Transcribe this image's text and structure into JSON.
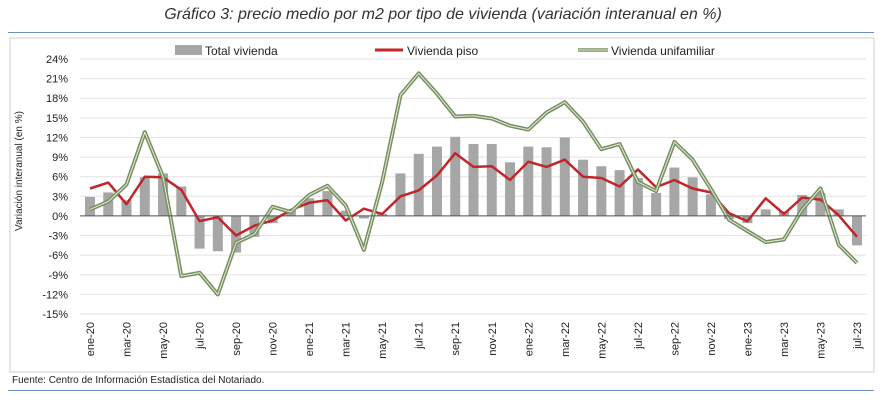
{
  "chart_data": {
    "type": "bar+line",
    "title": "Gráfico 3: precio medio por m2 por tipo de vivienda (variación interanual en %)",
    "ylabel": "Variación interanual (en %)",
    "ylim": [
      -15,
      24
    ],
    "yticks": [
      -15,
      -12,
      -9,
      -6,
      -3,
      0,
      3,
      6,
      9,
      12,
      15,
      18,
      21,
      24
    ],
    "ytick_labels": [
      "-15%",
      "-12%",
      "-9%",
      "-6%",
      "-3%",
      "0%",
      "3%",
      "6%",
      "9%",
      "12%",
      "15%",
      "18%",
      "21%",
      "24%"
    ],
    "grid": true,
    "legend_position": "top",
    "months": [
      "ene-20",
      "feb-20",
      "mar-20",
      "abr-20",
      "may-20",
      "jun-20",
      "jul-20",
      "ago-20",
      "sep-20",
      "oct-20",
      "nov-20",
      "dic-20",
      "ene-21",
      "feb-21",
      "mar-21",
      "abr-21",
      "may-21",
      "jun-21",
      "jul-21",
      "ago-21",
      "sep-21",
      "oct-21",
      "nov-21",
      "dic-21",
      "ene-22",
      "feb-22",
      "mar-22",
      "abr-22",
      "may-22",
      "jun-22",
      "jul-22",
      "ago-22",
      "sep-22",
      "oct-22",
      "nov-22",
      "dic-22",
      "ene-23",
      "feb-23",
      "mar-23",
      "abr-23",
      "may-23",
      "jun-23",
      "jul-23"
    ],
    "xtick_labels": [
      "ene-20",
      "mar-20",
      "may-20",
      "jul-20",
      "sep-20",
      "nov-20",
      "ene-21",
      "mar-21",
      "may-21",
      "jul-21",
      "sep-21",
      "nov-21",
      "ene-22",
      "mar-22",
      "may-22",
      "jul-22",
      "sep-22",
      "nov-22",
      "ene-23",
      "mar-23",
      "may-23",
      "jul-23"
    ],
    "series": [
      {
        "name": "Total vivienda",
        "kind": "bar",
        "color": "#a6a6a6",
        "values": [
          2.9,
          3.6,
          2.4,
          5.9,
          6.5,
          4.5,
          -5.0,
          -5.4,
          -5.6,
          -3.2,
          -1.1,
          0.8,
          2.7,
          3.8,
          0.8,
          -0.4,
          0.3,
          6.5,
          9.5,
          10.6,
          12.1,
          11.0,
          11.0,
          8.2,
          10.6,
          10.5,
          12.0,
          8.6,
          7.6,
          7.0,
          5.8,
          3.5,
          7.4,
          5.9,
          3.3,
          -0.5,
          -1.1,
          1.0,
          0.7,
          3.2,
          3.5,
          1.0,
          -4.5
        ]
      },
      {
        "name": "Vivienda piso",
        "kind": "line",
        "color": "#c0262a",
        "values": [
          4.2,
          5.1,
          1.8,
          6.0,
          5.9,
          4.0,
          -0.8,
          -0.2,
          -3.0,
          -1.5,
          -0.7,
          0.9,
          2.0,
          2.4,
          -0.7,
          1.1,
          0.3,
          3.0,
          3.9,
          6.2,
          9.6,
          7.5,
          7.6,
          5.5,
          8.3,
          7.5,
          8.6,
          6.0,
          5.8,
          4.5,
          7.1,
          4.4,
          5.5,
          4.2,
          3.6,
          0.4,
          -0.8,
          2.7,
          0.3,
          2.8,
          2.5,
          0.1,
          -3.2
        ]
      },
      {
        "name": "Vivienda unifamiliar",
        "kind": "line",
        "color": "#76905f",
        "values": [
          1.0,
          2.2,
          4.8,
          12.8,
          6.0,
          -9.2,
          -8.7,
          -12.0,
          -4.1,
          -2.8,
          1.4,
          0.6,
          3.2,
          4.6,
          1.6,
          -5.2,
          5.2,
          18.5,
          21.8,
          18.7,
          15.2,
          15.3,
          14.9,
          13.8,
          13.2,
          15.8,
          17.4,
          14.4,
          10.2,
          11.0,
          5.2,
          3.8,
          11.3,
          8.6,
          4.1,
          -0.6,
          -2.3,
          -4.0,
          -3.6,
          1.0,
          4.2,
          -4.4,
          -7.2
        ]
      }
    ]
  },
  "source": "Fuente: Centro de Información Estadística del Notariado."
}
